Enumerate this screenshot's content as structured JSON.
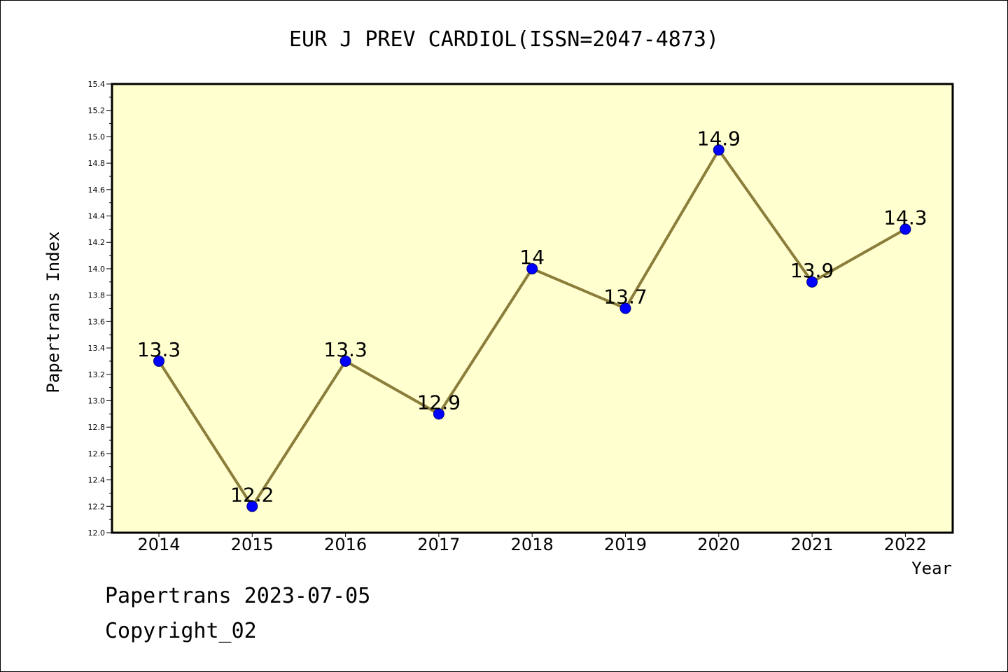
{
  "chart_data": {
    "type": "line",
    "title": "EUR J PREV CARDIOL(ISSN=2047-4873)",
    "xlabel": "Year",
    "ylabel": "Papertrans Index",
    "categories": [
      "2014",
      "2015",
      "2016",
      "2017",
      "2018",
      "2019",
      "2020",
      "2021",
      "2022"
    ],
    "values": [
      13.3,
      12.2,
      13.3,
      12.9,
      14,
      13.7,
      14.9,
      13.9,
      14.3
    ],
    "data_labels": [
      "13.3",
      "12.2",
      "13.3",
      "12.9",
      "14",
      "13.7",
      "14.9",
      "13.9",
      "14.3"
    ],
    "ylim": [
      12.0,
      15.4
    ],
    "y_ticks": [
      "12.0",
      "12.2",
      "12.4",
      "12.6",
      "12.8",
      "13.0",
      "13.2",
      "13.4",
      "13.6",
      "13.8",
      "14.0",
      "14.2",
      "14.4",
      "14.6",
      "14.8",
      "15.0",
      "15.2",
      "15.4"
    ],
    "grid": false,
    "legend": "none",
    "colors": {
      "plot_background": "#ffffd0",
      "line": "#8b7d3a",
      "marker_fill": "#0000ff",
      "marker_edge": "#000080"
    }
  },
  "footer": {
    "date_line": "Papertrans 2023-07-05",
    "copyright_line": "Copyright_02"
  }
}
